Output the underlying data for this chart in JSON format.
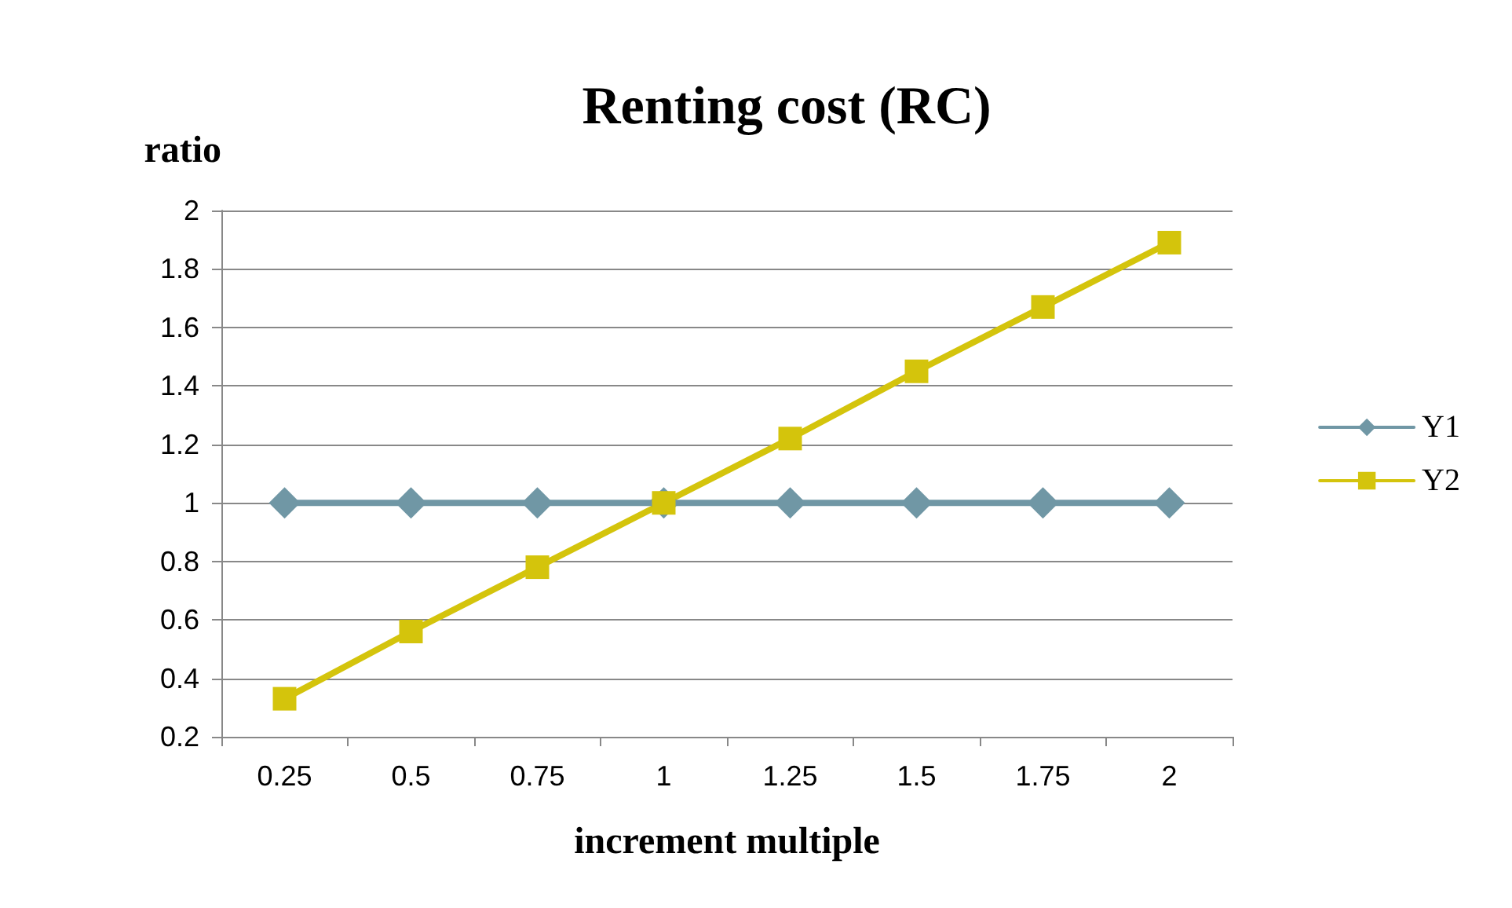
{
  "chart_data": {
    "type": "line",
    "title": "Renting cost (RC)",
    "xlabel": "increment multiple",
    "ylabel": "ratio",
    "categories": [
      "0.25",
      "0.5",
      "0.75",
      "1",
      "1.25",
      "1.5",
      "1.75",
      "2"
    ],
    "series": [
      {
        "name": "Y1",
        "color": "#7097a5",
        "marker": "diamond",
        "values": [
          1,
          1,
          1,
          1,
          1,
          1,
          1,
          1
        ]
      },
      {
        "name": "Y2",
        "color": "#d4c40c",
        "marker": "square",
        "values": [
          0.33,
          0.56,
          0.78,
          1.0,
          1.22,
          1.45,
          1.67,
          1.89
        ]
      }
    ],
    "ylim": [
      0.2,
      2
    ],
    "yticks": [
      0.2,
      0.4,
      0.6,
      0.8,
      1,
      1.2,
      1.4,
      1.6,
      1.8,
      2
    ],
    "grid": "y",
    "legend": "right",
    "line_style": "solid"
  }
}
